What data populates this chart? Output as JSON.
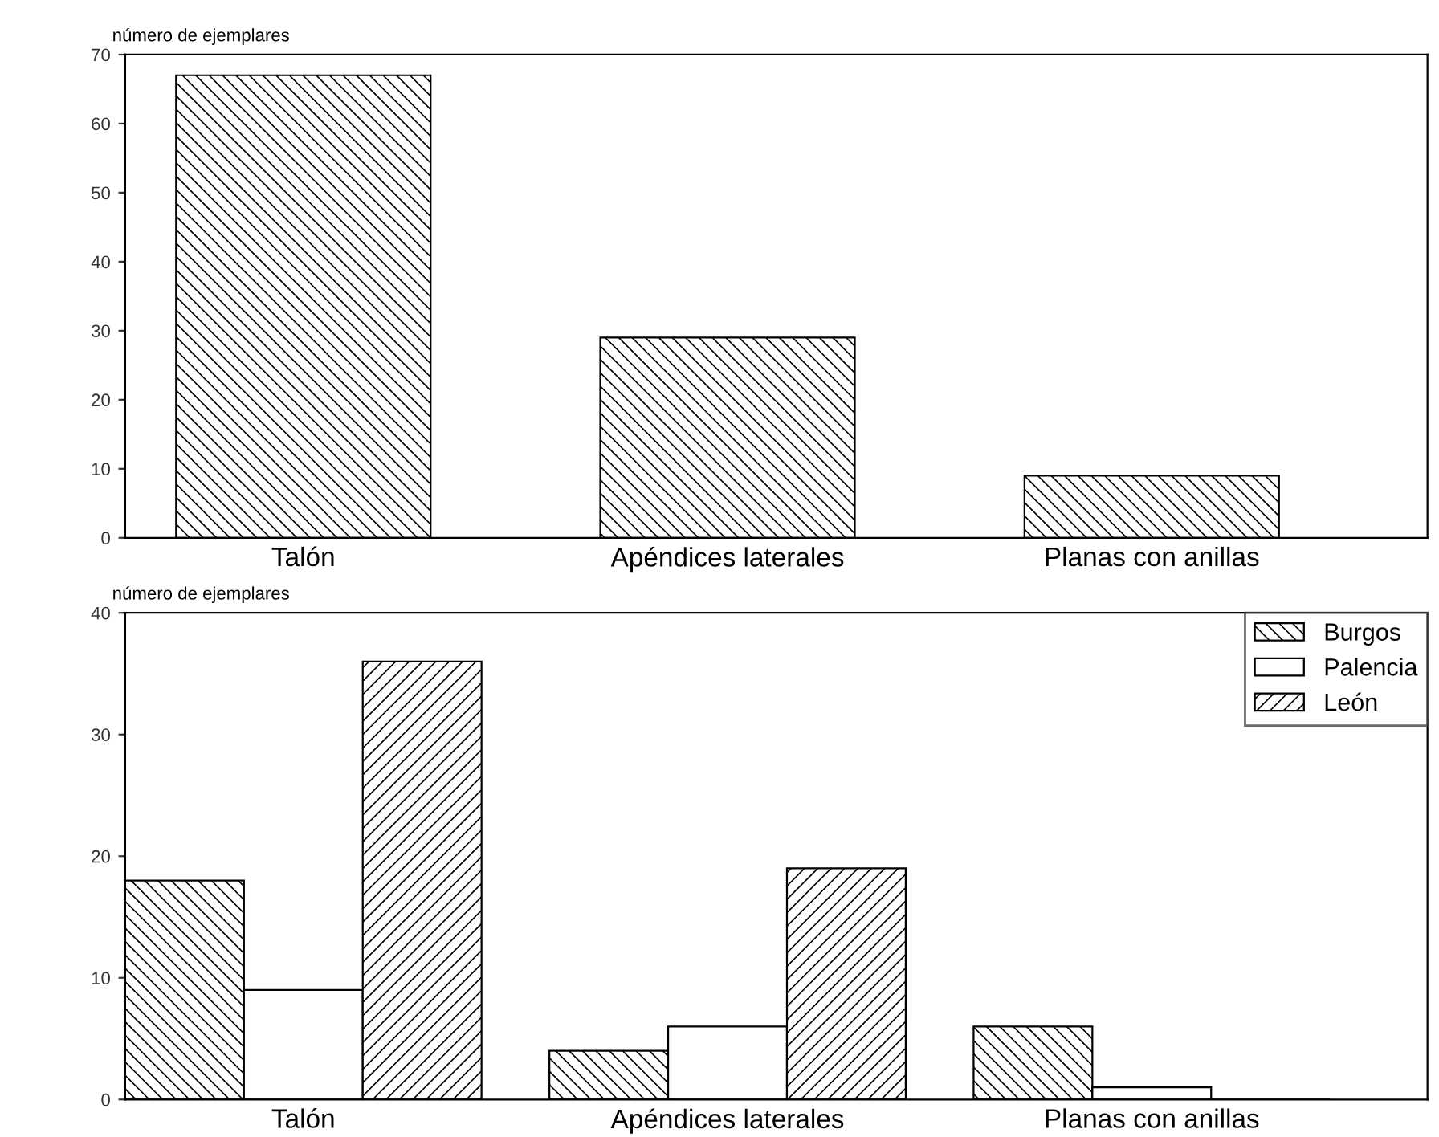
{
  "chart_data": [
    {
      "type": "bar",
      "ylabel": "número de ejemplares",
      "categories": [
        "Talón",
        "Apéndices laterales",
        "Planas con anillas"
      ],
      "series": [
        {
          "color": "#000000",
          "values": [
            67,
            29,
            9
          ]
        }
      ],
      "ylim": [
        0,
        70
      ],
      "yticks": [
        0,
        10,
        20,
        30,
        40,
        50,
        60,
        70
      ],
      "grid": false,
      "legend": false
    },
    {
      "type": "bar",
      "ylabel": "número de ejemplares",
      "categories": [
        "Talón",
        "Apéndices laterales",
        "Planas con anillas"
      ],
      "series": [
        {
          "name": "Burgos",
          "color": "#000000",
          "values": [
            18,
            4,
            6
          ]
        },
        {
          "name": "Palencia",
          "color": "#ffffff",
          "values": [
            9,
            6,
            1
          ]
        },
        {
          "name": "León",
          "color": "#000000",
          "values": [
            36,
            19,
            0
          ]
        }
      ],
      "ylim": [
        0,
        40
      ],
      "yticks": [
        0,
        10,
        20,
        30,
        40
      ],
      "grid": false,
      "legend": "top right"
    }
  ]
}
